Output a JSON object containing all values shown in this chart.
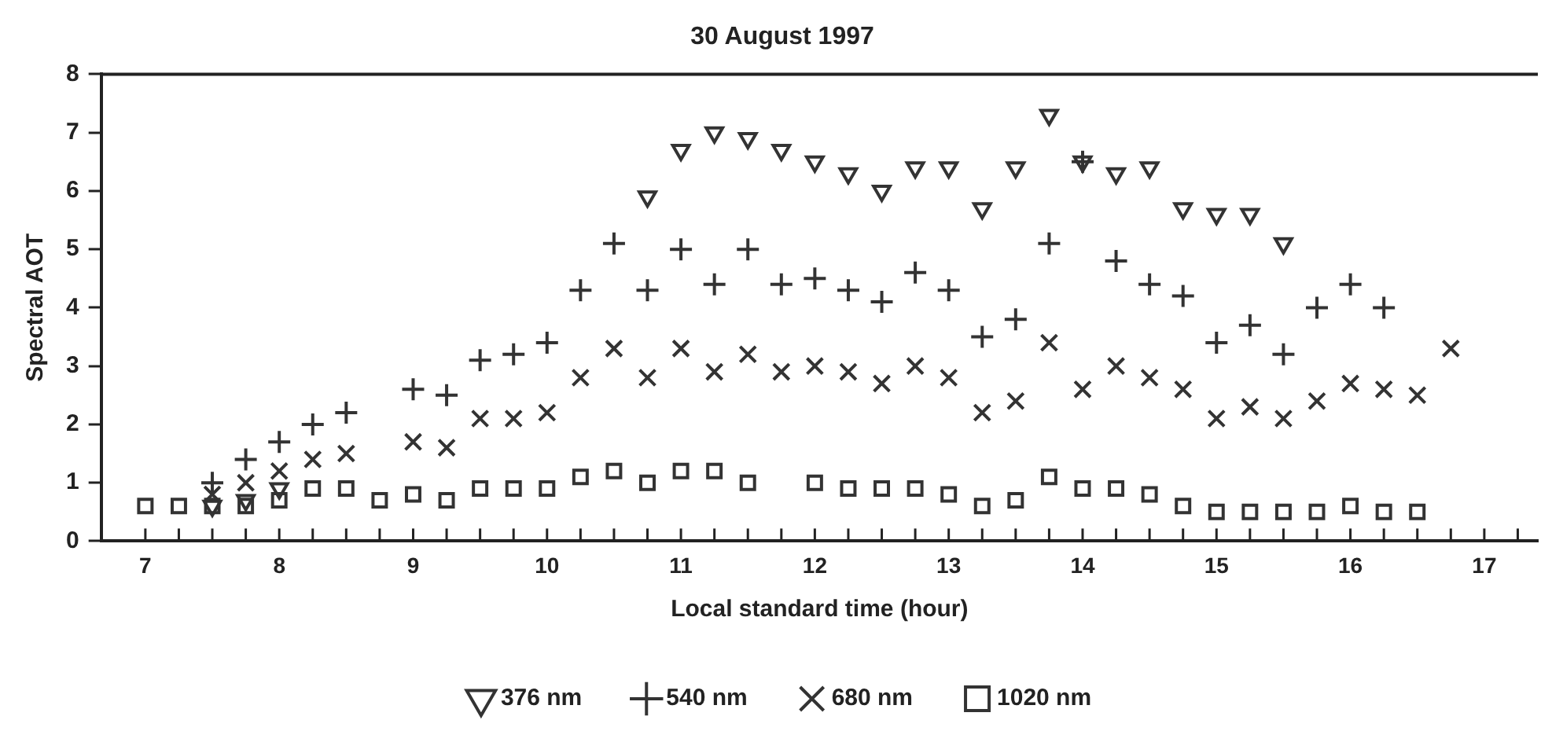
{
  "chart_data": {
    "type": "scatter",
    "title": "30 August 1997",
    "xlabel": "Local standard time (hour)",
    "ylabel": "Spectral AOT",
    "x": [
      7,
      7.25,
      7.5,
      7.75,
      8,
      8.25,
      8.5,
      8.75,
      9,
      9.25,
      9.5,
      9.75,
      10,
      10.25,
      10.5,
      10.75,
      11,
      11.25,
      11.5,
      11.75,
      12,
      12.25,
      12.5,
      12.75,
      13,
      13.25,
      13.5,
      13.75,
      14,
      14.25,
      14.5,
      14.75,
      15,
      15.25,
      15.5,
      15.75,
      16,
      16.25,
      16.5,
      16.75
    ],
    "series": [
      {
        "name": "376 nm",
        "color": "#333333",
        "marker": "triangle",
        "values": [
          null,
          null,
          0.6,
          0.7,
          0.9,
          null,
          null,
          null,
          null,
          null,
          null,
          null,
          null,
          null,
          null,
          5.9,
          6.7,
          7.0,
          6.9,
          6.7,
          6.5,
          6.3,
          6.0,
          6.4,
          6.4,
          5.7,
          6.4,
          7.3,
          6.5,
          6.3,
          6.4,
          5.7,
          5.6,
          5.6,
          5.1,
          null,
          null,
          null,
          null,
          null
        ]
      },
      {
        "name": "540 nm",
        "color": "#333333",
        "marker": "plus",
        "values": [
          null,
          null,
          1.0,
          1.4,
          1.7,
          2.0,
          2.2,
          null,
          2.6,
          2.5,
          3.1,
          3.2,
          3.4,
          4.3,
          5.1,
          4.3,
          5.0,
          4.4,
          5.0,
          4.4,
          4.5,
          4.3,
          4.1,
          4.6,
          4.3,
          3.5,
          3.8,
          5.1,
          6.5,
          4.8,
          4.4,
          4.2,
          3.4,
          3.7,
          3.2,
          4.0,
          4.4,
          4.0,
          null,
          null
        ]
      },
      {
        "name": "680 nm",
        "color": "#333333",
        "marker": "cross",
        "values": [
          null,
          null,
          0.8,
          1.0,
          1.2,
          1.4,
          1.5,
          null,
          1.7,
          1.6,
          2.1,
          2.1,
          2.2,
          2.8,
          3.3,
          2.8,
          3.3,
          2.9,
          3.2,
          2.9,
          3.0,
          2.9,
          2.7,
          3.0,
          2.8,
          2.2,
          2.4,
          3.4,
          2.6,
          3.0,
          2.8,
          2.6,
          2.1,
          2.3,
          2.1,
          2.4,
          2.7,
          2.6,
          2.5,
          3.3
        ]
      },
      {
        "name": "1020 nm",
        "color": "#333333",
        "marker": "square",
        "values": [
          0.6,
          0.6,
          0.6,
          0.6,
          0.7,
          0.9,
          0.9,
          0.7,
          0.8,
          0.7,
          0.9,
          0.9,
          0.9,
          1.1,
          1.2,
          1.0,
          1.2,
          1.2,
          1.0,
          null,
          1.0,
          0.9,
          0.9,
          0.9,
          0.8,
          0.6,
          0.7,
          1.1,
          0.9,
          0.9,
          0.8,
          0.6,
          0.5,
          0.5,
          0.5,
          0.5,
          0.6,
          0.5,
          0.5,
          null
        ]
      }
    ],
    "xlim": [
      6.67,
      17.4
    ],
    "xticks": [
      7,
      {
        "value": 7.25,
        "label": null
      },
      {
        "value": 7.5,
        "label": null
      },
      {
        "value": 7.75,
        "label": null
      },
      8,
      {
        "value": 8.25,
        "label": null
      },
      {
        "value": 8.5,
        "label": null
      },
      {
        "value": 8.75,
        "label": null
      },
      9,
      {
        "value": 9.25,
        "label": null
      },
      {
        "value": 9.5,
        "label": null
      },
      {
        "value": 9.75,
        "label": null
      },
      10,
      {
        "value": 10.25,
        "label": null
      },
      {
        "value": 10.5,
        "label": null
      },
      {
        "value": 10.75,
        "label": null
      },
      11,
      {
        "value": 11.25,
        "label": null
      },
      {
        "value": 11.5,
        "label": null
      },
      {
        "value": 11.75,
        "label": null
      },
      12,
      {
        "value": 12.25,
        "label": null
      },
      {
        "value": 12.5,
        "label": null
      },
      {
        "value": 12.75,
        "label": null
      },
      13,
      {
        "value": 13.25,
        "label": null
      },
      {
        "value": 13.5,
        "label": null
      },
      {
        "value": 13.75,
        "label": null
      },
      14,
      {
        "value": 14.25,
        "label": null
      },
      {
        "value": 14.5,
        "label": null
      },
      {
        "value": 14.75,
        "label": null
      },
      15,
      {
        "value": 15.25,
        "label": null
      },
      {
        "value": 15.5,
        "label": null
      },
      {
        "value": 15.75,
        "label": null
      },
      16,
      {
        "value": 16.25,
        "label": null
      },
      {
        "value": 16.5,
        "label": null
      },
      {
        "value": 16.75,
        "label": null
      },
      17,
      {
        "value": 17.25,
        "label": null
      }
    ],
    "ylim": [
      0,
      8
    ],
    "yticks": [
      0,
      1,
      2,
      3,
      4,
      5,
      6,
      7,
      8
    ],
    "grid": false,
    "legend": "bottom"
  }
}
